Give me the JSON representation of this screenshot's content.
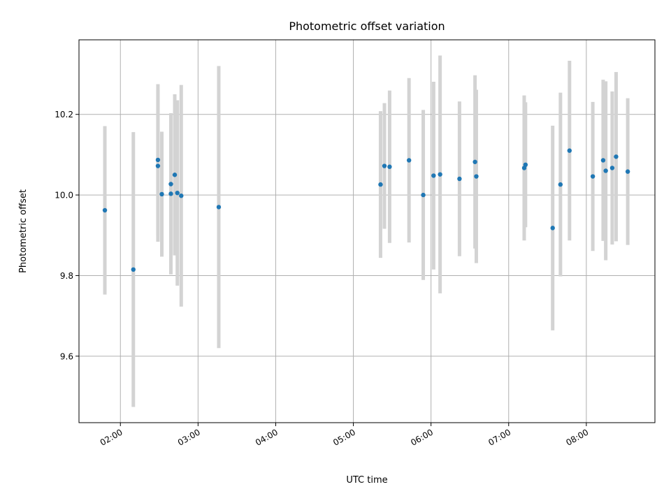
{
  "chart_data": {
    "type": "scatter",
    "title": "Photometric offset variation",
    "xlabel": "UTC time",
    "ylabel": "Photometric offset",
    "x_tick_labels": [
      "02:00",
      "03:00",
      "04:00",
      "05:00",
      "06:00",
      "07:00",
      "08:00"
    ],
    "y_tick_labels": [
      "9.6",
      "9.8",
      "10.0",
      "10.2"
    ],
    "xlim": [
      "01:28",
      "08:53"
    ],
    "ylim": [
      9.435,
      10.385
    ],
    "grid": true,
    "point_color": "#1f77b4",
    "errorbar_color": "#d3d3d3",
    "points": [
      {
        "x": "01:48",
        "y": 9.962,
        "yerr": 0.209
      },
      {
        "x": "02:10",
        "y": 9.815,
        "yerr": 0.341
      },
      {
        "x": "02:29",
        "y": 10.087,
        "yerr": 0.188
      },
      {
        "x": "02:29",
        "y": 10.072,
        "yerr": 0.188
      },
      {
        "x": "02:32",
        "y": 10.002,
        "yerr": 0.155
      },
      {
        "x": "02:39",
        "y": 10.003,
        "yerr": 0.2
      },
      {
        "x": "02:39",
        "y": 10.027,
        "yerr": 0.175
      },
      {
        "x": "02:42",
        "y": 10.05,
        "yerr": 0.2
      },
      {
        "x": "02:44",
        "y": 10.005,
        "yerr": 0.23
      },
      {
        "x": "02:47",
        "y": 9.998,
        "yerr": 0.275
      },
      {
        "x": "03:16",
        "y": 9.97,
        "yerr": 0.35
      },
      {
        "x": "05:21",
        "y": 10.026,
        "yerr": 0.182
      },
      {
        "x": "05:24",
        "y": 10.072,
        "yerr": 0.156
      },
      {
        "x": "05:28",
        "y": 10.07,
        "yerr": 0.189
      },
      {
        "x": "05:43",
        "y": 10.086,
        "yerr": 0.204
      },
      {
        "x": "05:54",
        "y": 10.0,
        "yerr": 0.211
      },
      {
        "x": "06:02",
        "y": 10.048,
        "yerr": 0.233
      },
      {
        "x": "06:07",
        "y": 10.051,
        "yerr": 0.295
      },
      {
        "x": "06:22",
        "y": 10.04,
        "yerr": 0.192
      },
      {
        "x": "06:34",
        "y": 10.082,
        "yerr": 0.215
      },
      {
        "x": "06:35",
        "y": 10.046,
        "yerr": 0.215
      },
      {
        "x": "07:12",
        "y": 10.067,
        "yerr": 0.18
      },
      {
        "x": "07:13",
        "y": 10.075,
        "yerr": 0.155
      },
      {
        "x": "07:34",
        "y": 9.918,
        "yerr": 0.254
      },
      {
        "x": "07:40",
        "y": 10.026,
        "yerr": 0.228
      },
      {
        "x": "07:47",
        "y": 10.11,
        "yerr": 0.223
      },
      {
        "x": "08:05",
        "y": 10.046,
        "yerr": 0.185
      },
      {
        "x": "08:13",
        "y": 10.086,
        "yerr": 0.2
      },
      {
        "x": "08:15",
        "y": 10.06,
        "yerr": 0.222
      },
      {
        "x": "08:20",
        "y": 10.067,
        "yerr": 0.19
      },
      {
        "x": "08:23",
        "y": 10.095,
        "yerr": 0.21
      },
      {
        "x": "08:32",
        "y": 10.058,
        "yerr": 0.182
      }
    ]
  }
}
